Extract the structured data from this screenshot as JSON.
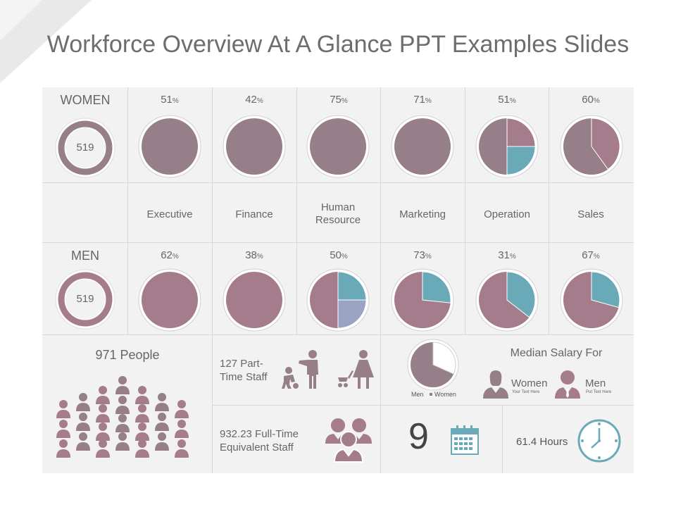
{
  "title": "Workforce Overview At A Glance PPT Examples Slides",
  "colors": {
    "women": "#967f88",
    "women_alt": "#a88a96",
    "men": "#a57c8b",
    "teal": "#6aaab8",
    "lavender": "#9aa3c2",
    "grid": "#d8d8d8",
    "panel": "#f2f2f2"
  },
  "women": {
    "label": "WOMEN",
    "total": "519",
    "pies": [
      {
        "pct": "51",
        "sign": "%"
      },
      {
        "pct": "42",
        "sign": "%"
      },
      {
        "pct": "75",
        "sign": "%"
      },
      {
        "pct": "71",
        "sign": "%"
      },
      {
        "pct": "51",
        "sign": "%"
      },
      {
        "pct": "60",
        "sign": "%"
      }
    ]
  },
  "departments": [
    "Executive",
    "Finance",
    "Human Resource",
    "Marketing",
    "Operation",
    "Sales"
  ],
  "men": {
    "label": "MEN",
    "total": "519",
    "pies": [
      {
        "pct": "62",
        "sign": "%"
      },
      {
        "pct": "38",
        "sign": "%"
      },
      {
        "pct": "50",
        "sign": "%"
      },
      {
        "pct": "73",
        "sign": "%"
      },
      {
        "pct": "31",
        "sign": "%"
      },
      {
        "pct": "67",
        "sign": "%"
      }
    ]
  },
  "people": {
    "label": "971 People"
  },
  "part_time": {
    "label": "127 Part-\nTime Staff"
  },
  "full_time": {
    "label": "932.23 Full-Time\nEquivalent Staff"
  },
  "gender_pie": {
    "legend_men": "Men",
    "legend_women": "Women"
  },
  "salary": {
    "title": "Median Salary For",
    "women_label": "Women",
    "women_sub": "Your Text Here",
    "men_label": "Men",
    "men_sub": "Put Text Here"
  },
  "calendar": {
    "number": "9"
  },
  "hours": {
    "label": "61.4 Hours"
  }
}
